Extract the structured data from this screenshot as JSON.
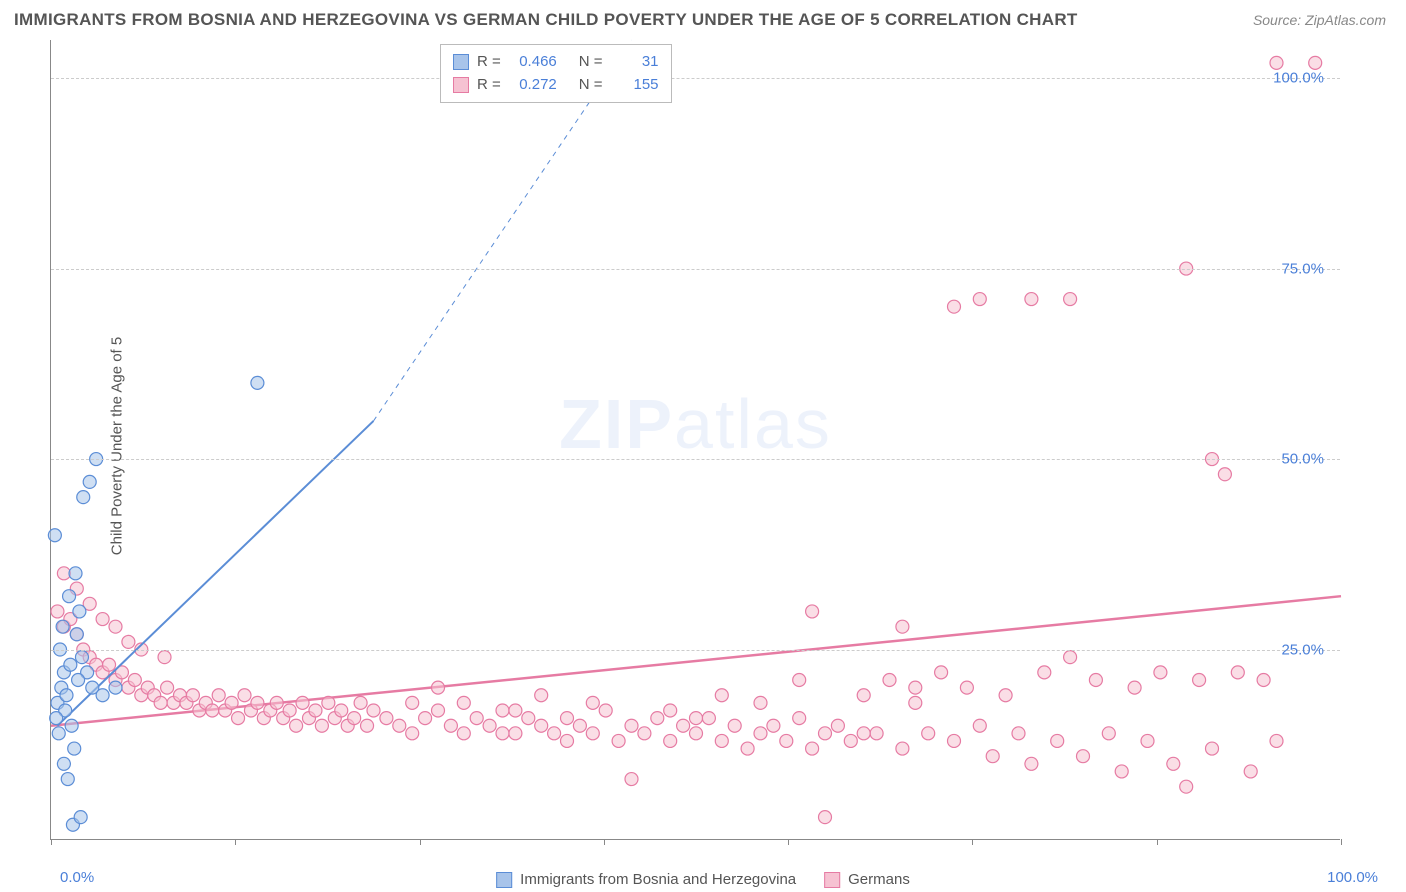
{
  "title": "IMMIGRANTS FROM BOSNIA AND HERZEGOVINA VS GERMAN CHILD POVERTY UNDER THE AGE OF 5 CORRELATION CHART",
  "source": "Source: ZipAtlas.com",
  "ylabel": "Child Poverty Under the Age of 5",
  "watermark_bold": "ZIP",
  "watermark_light": "atlas",
  "chart": {
    "type": "scatter",
    "xlim": [
      0,
      100
    ],
    "ylim": [
      0,
      105
    ],
    "yticks": [
      25,
      50,
      75,
      100
    ],
    "ytick_labels": [
      "25.0%",
      "50.0%",
      "75.0%",
      "100.0%"
    ],
    "xticks": [
      0,
      14.3,
      28.6,
      42.9,
      57.1,
      71.4,
      85.7,
      100
    ],
    "xaxis_label_left": "0.0%",
    "xaxis_label_right": "100.0%",
    "background_color": "#ffffff",
    "grid_color": "#cccccc",
    "axis_color": "#888888",
    "marker_radius": 6.5,
    "marker_stroke_width": 1.2,
    "series": [
      {
        "name": "Immigrants from Bosnia and Herzegovina",
        "fill": "#a8c4ea",
        "stroke": "#5b8dd6",
        "fill_opacity": 0.55,
        "R": "0.466",
        "N": "31",
        "trend": {
          "x1": 0.5,
          "y1": 15,
          "x2": 25,
          "y2": 55,
          "dash_x2": 45,
          "dash_y2": 105,
          "width": 2
        },
        "points": [
          [
            0.5,
            18
          ],
          [
            0.8,
            20
          ],
          [
            1.0,
            22
          ],
          [
            1.2,
            19
          ],
          [
            0.6,
            14
          ],
          [
            1.5,
            23
          ],
          [
            2.0,
            27
          ],
          [
            2.5,
            45
          ],
          [
            3.0,
            47
          ],
          [
            2.2,
            30
          ],
          [
            3.5,
            50
          ],
          [
            1.8,
            12
          ],
          [
            1.0,
            10
          ],
          [
            1.3,
            8
          ],
          [
            2.8,
            22
          ],
          [
            0.7,
            25
          ],
          [
            1.1,
            17
          ],
          [
            1.6,
            15
          ],
          [
            2.1,
            21
          ],
          [
            0.9,
            28
          ],
          [
            3.2,
            20
          ],
          [
            4.0,
            19
          ],
          [
            5.0,
            20
          ],
          [
            2.4,
            24
          ],
          [
            1.4,
            32
          ],
          [
            16,
            60
          ],
          [
            1.7,
            2
          ],
          [
            2.3,
            3
          ],
          [
            0.4,
            16
          ],
          [
            1.9,
            35
          ],
          [
            0.3,
            40
          ]
        ]
      },
      {
        "name": "Germans",
        "fill": "#f6c2d2",
        "stroke": "#e67ba3",
        "fill_opacity": 0.55,
        "R": "0.272",
        "N": "155",
        "trend": {
          "x1": 0,
          "y1": 15,
          "x2": 100,
          "y2": 32,
          "width": 2.5
        },
        "points": [
          [
            0.5,
            30
          ],
          [
            1,
            28
          ],
          [
            1.5,
            29
          ],
          [
            2,
            27
          ],
          [
            2.5,
            25
          ],
          [
            3,
            24
          ],
          [
            3.5,
            23
          ],
          [
            4,
            22
          ],
          [
            4.5,
            23
          ],
          [
            5,
            21
          ],
          [
            5.5,
            22
          ],
          [
            6,
            20
          ],
          [
            6.5,
            21
          ],
          [
            7,
            19
          ],
          [
            7.5,
            20
          ],
          [
            8,
            19
          ],
          [
            8.5,
            18
          ],
          [
            9,
            20
          ],
          [
            9.5,
            18
          ],
          [
            10,
            19
          ],
          [
            10.5,
            18
          ],
          [
            11,
            19
          ],
          [
            11.5,
            17
          ],
          [
            12,
            18
          ],
          [
            12.5,
            17
          ],
          [
            13,
            19
          ],
          [
            13.5,
            17
          ],
          [
            14,
            18
          ],
          [
            14.5,
            16
          ],
          [
            15,
            19
          ],
          [
            15.5,
            17
          ],
          [
            16,
            18
          ],
          [
            16.5,
            16
          ],
          [
            17,
            17
          ],
          [
            17.5,
            18
          ],
          [
            18,
            16
          ],
          [
            18.5,
            17
          ],
          [
            19,
            15
          ],
          [
            19.5,
            18
          ],
          [
            20,
            16
          ],
          [
            20.5,
            17
          ],
          [
            21,
            15
          ],
          [
            21.5,
            18
          ],
          [
            22,
            16
          ],
          [
            22.5,
            17
          ],
          [
            23,
            15
          ],
          [
            23.5,
            16
          ],
          [
            24,
            18
          ],
          [
            24.5,
            15
          ],
          [
            25,
            17
          ],
          [
            26,
            16
          ],
          [
            27,
            15
          ],
          [
            28,
            18
          ],
          [
            29,
            16
          ],
          [
            30,
            17
          ],
          [
            31,
            15
          ],
          [
            32,
            14
          ],
          [
            33,
            16
          ],
          [
            34,
            15
          ],
          [
            35,
            17
          ],
          [
            36,
            14
          ],
          [
            37,
            16
          ],
          [
            38,
            15
          ],
          [
            39,
            14
          ],
          [
            40,
            16
          ],
          [
            41,
            15
          ],
          [
            42,
            14
          ],
          [
            43,
            17
          ],
          [
            44,
            13
          ],
          [
            45,
            15
          ],
          [
            46,
            14
          ],
          [
            47,
            16
          ],
          [
            48,
            13
          ],
          [
            49,
            15
          ],
          [
            50,
            14
          ],
          [
            51,
            16
          ],
          [
            52,
            13
          ],
          [
            53,
            15
          ],
          [
            54,
            12
          ],
          [
            55,
            14
          ],
          [
            56,
            15
          ],
          [
            57,
            13
          ],
          [
            58,
            16
          ],
          [
            59,
            12
          ],
          [
            60,
            14
          ],
          [
            61,
            15
          ],
          [
            62,
            13
          ],
          [
            63,
            19
          ],
          [
            64,
            14
          ],
          [
            65,
            21
          ],
          [
            66,
            12
          ],
          [
            67,
            18
          ],
          [
            68,
            14
          ],
          [
            69,
            22
          ],
          [
            70,
            13
          ],
          [
            71,
            20
          ],
          [
            72,
            15
          ],
          [
            73,
            11
          ],
          [
            74,
            19
          ],
          [
            75,
            14
          ],
          [
            76,
            10
          ],
          [
            77,
            22
          ],
          [
            78,
            13
          ],
          [
            79,
            24
          ],
          [
            80,
            11
          ],
          [
            81,
            21
          ],
          [
            82,
            14
          ],
          [
            83,
            9
          ],
          [
            84,
            20
          ],
          [
            85,
            13
          ],
          [
            86,
            22
          ],
          [
            87,
            10
          ],
          [
            88,
            7
          ],
          [
            89,
            21
          ],
          [
            90,
            12
          ],
          [
            91,
            48
          ],
          [
            92,
            22
          ],
          [
            93,
            9
          ],
          [
            94,
            21
          ],
          [
            95,
            13
          ],
          [
            66,
            28
          ],
          [
            59,
            30
          ],
          [
            70,
            70
          ],
          [
            72,
            71
          ],
          [
            76,
            71
          ],
          [
            79,
            71
          ],
          [
            88,
            75
          ],
          [
            90,
            50
          ],
          [
            95,
            102
          ],
          [
            98,
            102
          ],
          [
            1,
            35
          ],
          [
            2,
            33
          ],
          [
            3,
            31
          ],
          [
            4,
            29
          ],
          [
            5,
            28
          ],
          [
            6,
            26
          ],
          [
            7,
            25
          ],
          [
            8.8,
            24
          ],
          [
            55,
            18
          ],
          [
            60,
            3
          ],
          [
            45,
            8
          ],
          [
            52,
            19
          ],
          [
            58,
            21
          ],
          [
            63,
            14
          ],
          [
            67,
            20
          ],
          [
            48,
            17
          ],
          [
            50,
            16
          ],
          [
            42,
            18
          ],
          [
            38,
            19
          ],
          [
            35,
            14
          ],
          [
            30,
            20
          ],
          [
            28,
            14
          ],
          [
            32,
            18
          ],
          [
            36,
            17
          ],
          [
            40,
            13
          ]
        ]
      }
    ]
  },
  "legend_top": {
    "label_R": "R =",
    "label_N": "N ="
  },
  "legend_bottom": {
    "items": [
      "Immigrants from Bosnia and Herzegovina",
      "Germans"
    ]
  }
}
